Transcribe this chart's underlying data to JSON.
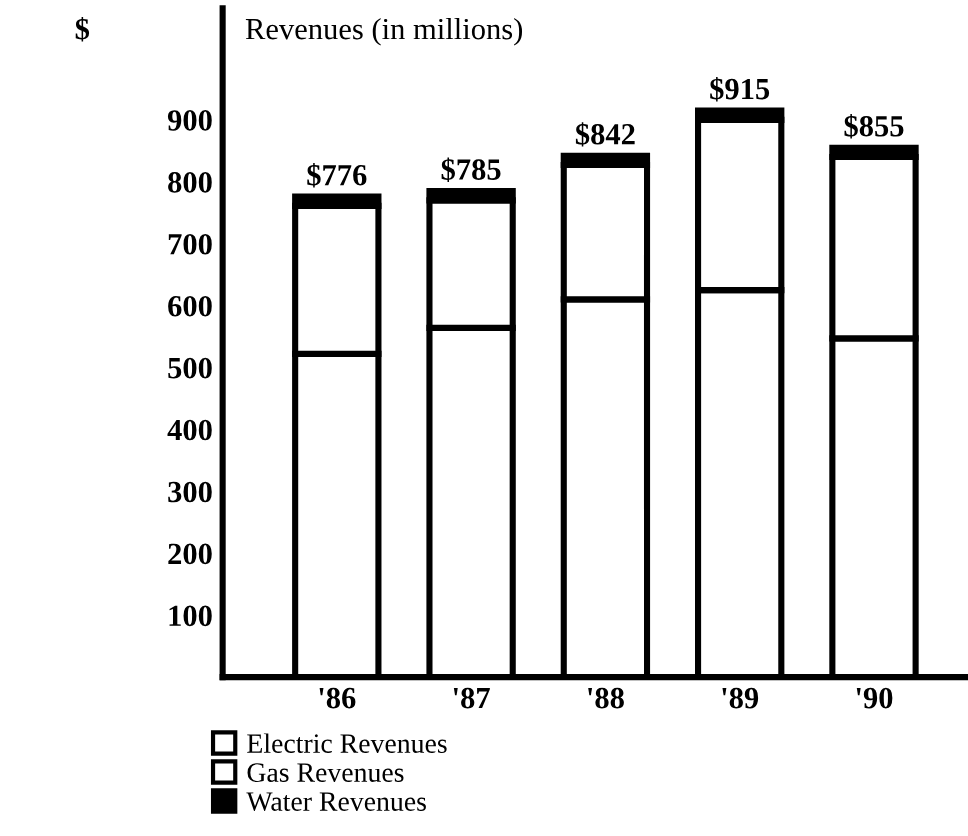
{
  "chart_data": {
    "type": "bar",
    "stacked": true,
    "title": "Revenues (in millions)",
    "ylabel": "$",
    "categories": [
      "'86",
      "'87",
      "'88",
      "'89",
      "'90"
    ],
    "series": [
      {
        "name": "Electric Revenues",
        "color": "#ffffff",
        "values": [
          522,
          564,
          610,
          625,
          547
        ]
      },
      {
        "name": "Gas Revenues",
        "color": "#ffffff",
        "values": [
          239,
          206,
          217,
          275,
          293
        ]
      },
      {
        "name": "Water Revenues",
        "color": "#000000",
        "values": [
          15,
          15,
          15,
          15,
          15
        ]
      }
    ],
    "totals": [
      "$776",
      "$785",
      "$842",
      "$915",
      "$855"
    ],
    "ylim": [
      0,
      1080
    ],
    "yticks": [
      100,
      200,
      300,
      400,
      500,
      600,
      700,
      800,
      900
    ],
    "grid": false,
    "legend": "bottom"
  }
}
